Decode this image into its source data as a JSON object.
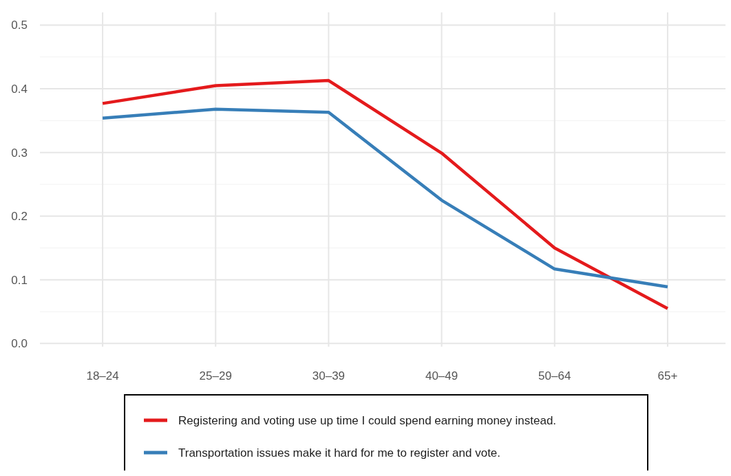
{
  "chart_data": {
    "type": "line",
    "categories": [
      "18–24",
      "25–29",
      "30–39",
      "40–49",
      "50–64",
      "65+"
    ],
    "series": [
      {
        "name": "Registering and voting use up time I could spend earning money instead.",
        "color": "#e41a1c",
        "values": [
          0.377,
          0.405,
          0.413,
          0.299,
          0.15,
          0.055
        ]
      },
      {
        "name": "Transportation issues make it hard for me to register and vote.",
        "color": "#377eb8",
        "values": [
          0.354,
          0.368,
          0.363,
          0.225,
          0.117,
          0.089
        ]
      }
    ],
    "ylim": [
      -0.005,
      0.52
    ],
    "yticks": [
      {
        "value": 0,
        "label": "0.0"
      },
      {
        "value": 0.05,
        "label": null
      },
      0.1,
      {
        "value": 0.15,
        "label": null
      },
      0.2,
      {
        "value": 0.25,
        "label": null
      },
      0.3,
      {
        "value": 0.35,
        "label": null
      },
      0.4,
      {
        "value": 0.45,
        "label": null
      },
      0.5
    ],
    "grid": true,
    "legend": "bottom",
    "marker": "none",
    "line_style": "solid"
  }
}
